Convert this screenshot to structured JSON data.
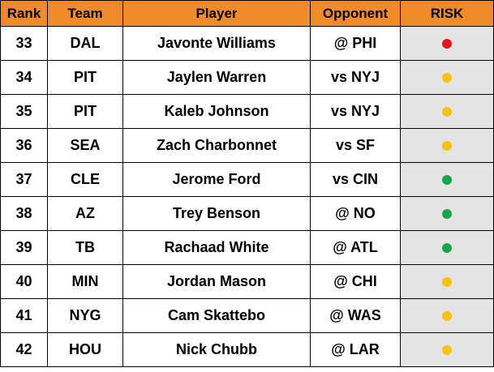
{
  "colors": {
    "header_bg": "#f08a2b",
    "risk_cell_bg": "#e4e4e4",
    "risk_high": "#e8161a",
    "risk_medium": "#fcc10a",
    "risk_low": "#12a84a"
  },
  "columns": [
    "Rank",
    "Team",
    "Player",
    "Opponent",
    "RISK"
  ],
  "rows": [
    {
      "rank": "33",
      "team": "DAL",
      "player": "Javonte Williams",
      "opponent": "@ PHI",
      "risk": "high"
    },
    {
      "rank": "34",
      "team": "PIT",
      "player": "Jaylen Warren",
      "opponent": "vs NYJ",
      "risk": "medium"
    },
    {
      "rank": "35",
      "team": "PIT",
      "player": "Kaleb Johnson",
      "opponent": "vs NYJ",
      "risk": "medium"
    },
    {
      "rank": "36",
      "team": "SEA",
      "player": "Zach Charbonnet",
      "opponent": "vs SF",
      "risk": "medium"
    },
    {
      "rank": "37",
      "team": "CLE",
      "player": "Jerome Ford",
      "opponent": "vs CIN",
      "risk": "low"
    },
    {
      "rank": "38",
      "team": "AZ",
      "player": "Trey Benson",
      "opponent": "@ NO",
      "risk": "low"
    },
    {
      "rank": "39",
      "team": "TB",
      "player": "Rachaad White",
      "opponent": "@ ATL",
      "risk": "low"
    },
    {
      "rank": "40",
      "team": "MIN",
      "player": "Jordan Mason",
      "opponent": "@ CHI",
      "risk": "medium"
    },
    {
      "rank": "41",
      "team": "NYG",
      "player": "Cam Skattebo",
      "opponent": "@ WAS",
      "risk": "medium"
    },
    {
      "rank": "42",
      "team": "HOU",
      "player": "Nick Chubb",
      "opponent": "@ LAR",
      "risk": "medium"
    }
  ]
}
